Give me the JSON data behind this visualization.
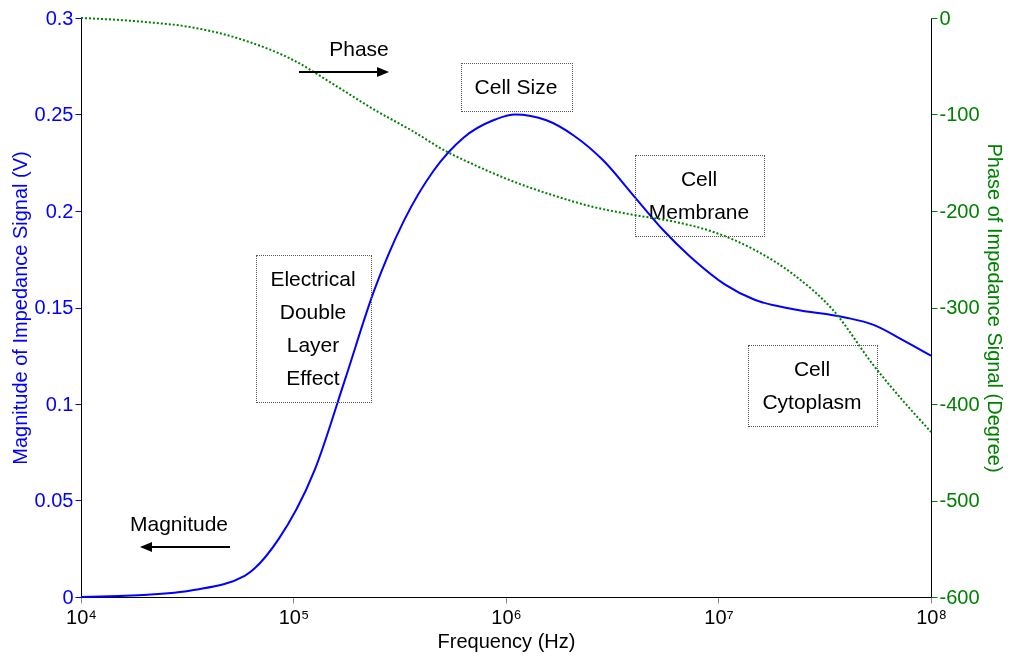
{
  "chart_data": {
    "type": "line",
    "xlabel": "Frequency (Hz)",
    "ylabel": "Magnitude of Impedance Signal (V)",
    "y2label": "Phase of Impedance Signal (Degree)",
    "log": "x",
    "marker": "none",
    "xlim": [
      10000,
      100000000
    ],
    "xticks": [
      {
        "value": 10000,
        "label": "10⁴"
      },
      {
        "value": 100000,
        "label": "10⁵"
      },
      {
        "value": 1000000,
        "label": "10⁶"
      },
      {
        "value": 10000000,
        "label": "10⁷"
      },
      {
        "value": 100000000,
        "label": "10⁸"
      }
    ],
    "ylim": [
      0,
      0.3
    ],
    "yticks": [
      0,
      0.05,
      0.1,
      0.15,
      0.2,
      0.25,
      0.3
    ],
    "y2lim": [
      -600,
      0
    ],
    "y2ticks": [
      -600,
      -500,
      -400,
      -300,
      -200,
      -100,
      0
    ],
    "series": [
      {
        "color": "#0000ff",
        "line_style": "solid",
        "x": [
          10000,
          19770,
          33900,
          58900,
          85100,
          126000,
          174000,
          240000,
          331000,
          457000,
          631000,
          871000,
          1100000,
          1550000,
          2090000,
          2880000,
          3980000,
          5500000,
          7590000,
          10700000,
          14800000,
          22900000,
          38900000,
          53700000,
          74100000,
          100000000
        ],
        "values": [
          0,
          0.001,
          0.0036,
          0.011,
          0.03,
          0.066,
          0.112,
          0.159,
          0.195,
          0.221,
          0.238,
          0.247,
          0.25,
          0.247,
          0.239,
          0.226,
          0.208,
          0.19,
          0.175,
          0.162,
          0.154,
          0.149,
          0.145,
          0.141,
          0.133,
          0.125
        ]
      },
      {
        "color": "#008000",
        "line_style": "dotted",
        "axis": "y2",
        "x": [
          10000,
          19770,
          33900,
          58500,
          100500,
          155000,
          240000,
          369000,
          511000,
          706000,
          1100000,
          1680000,
          2600000,
          3980000,
          6170000,
          9550000,
          14700000,
          22600000,
          34700000,
          53700000,
          100000000
        ],
        "values": [
          0,
          -4,
          -10,
          -23,
          -44,
          -69,
          -95,
          -118,
          -137,
          -152,
          -170,
          -184,
          -196,
          -204,
          -211,
          -222,
          -240,
          -266,
          -303,
          -360,
          -429
        ]
      }
    ],
    "annotations": [
      "Phase",
      "Magnitude",
      "Cell Size",
      "Cell\nMembrane",
      "Cell\nCytoplasm",
      "Electrical\nDouble\nLayer\nEffect"
    ]
  }
}
